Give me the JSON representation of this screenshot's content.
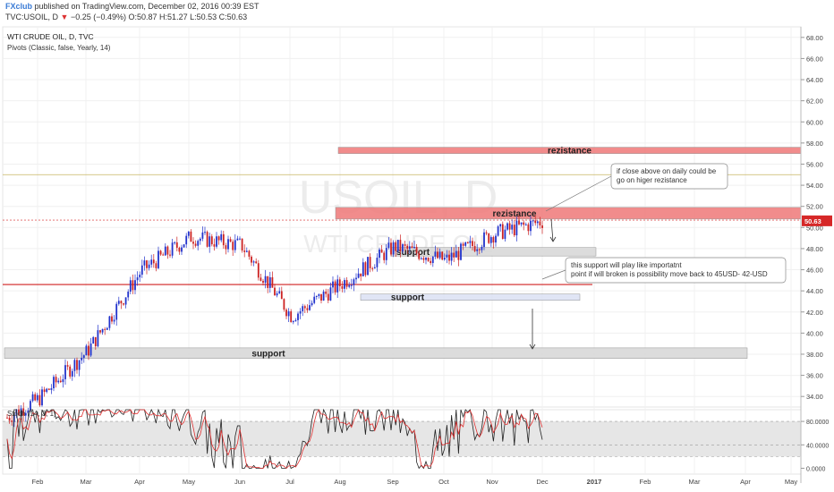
{
  "header": {
    "brand": "FXclub",
    "published": " published on TradingView.com, December 02, 2016 00:39 EST",
    "symbol": "TVC:USOIL, D",
    "change_arrow": "▼",
    "change": "−0.25 (−0.49%)",
    "ohlc_label": "O:50.87 H:51.27 L:50.53 C:50.63"
  },
  "chart_data": [
    {
      "type": "candlestick",
      "title": "WTI CRUDE OIL, D, TVC",
      "indicator_label": "Pivots (Classic, false, Yearly, 14)",
      "watermark": {
        "symbol": "USOIL, D",
        "name": "WTI CRUDE OIL"
      },
      "x_ticks": [
        "Feb",
        "Mar",
        "Apr",
        "May",
        "Jun",
        "Jul",
        "Aug",
        "Sep",
        "Oct",
        "Nov",
        "Dec",
        "2017",
        "Feb",
        "Mar",
        "Apr",
        "May"
      ],
      "y_ticks": [
        "34.00",
        "36.00",
        "38.00",
        "40.00",
        "42.00",
        "44.00",
        "46.00",
        "48.00",
        "50.00",
        "52.00",
        "54.00",
        "56.00",
        "58.00",
        "60.00",
        "62.00",
        "64.00",
        "66.00",
        "68.00"
      ],
      "ylim": [
        33,
        69
      ],
      "last_price": "50.63",
      "series_monthly_closes": [
        {
          "month": "Feb",
          "value": 33.8
        },
        {
          "month": "Mar",
          "value": 38.3
        },
        {
          "month": "Apr",
          "value": 45.9
        },
        {
          "month": "May",
          "value": 49.1
        },
        {
          "month": "Jun",
          "value": 48.3
        },
        {
          "month": "Jul",
          "value": 41.6
        },
        {
          "month": "Aug",
          "value": 44.7
        },
        {
          "month": "Sep",
          "value": 48.2
        },
        {
          "month": "Oct",
          "value": 46.9
        },
        {
          "month": "Nov",
          "value": 49.4
        },
        {
          "month": "Dec",
          "value": 50.63
        }
      ],
      "zones": [
        {
          "label": "rezistance",
          "from": 57.0,
          "to": 57.6,
          "color": "#f08080"
        },
        {
          "label": "rezistance",
          "from": 50.8,
          "to": 51.9,
          "color": "#f08080"
        },
        {
          "label": "support",
          "from": 47.3,
          "to": 48.1,
          "color": "#d9d9d9"
        },
        {
          "label": "support",
          "from": 43.1,
          "to": 43.7,
          "color": "#dde3f5"
        },
        {
          "label": "support",
          "from": 37.6,
          "to": 38.6,
          "color": "#d9d9d9"
        }
      ],
      "horizontal_lines": [
        {
          "value": 55.0,
          "color": "#c8b560"
        },
        {
          "value": 50.7,
          "color": "#e06060"
        },
        {
          "value": 44.6,
          "color": "#d02020"
        }
      ],
      "callouts": [
        {
          "text_lines": [
            "if close above on daily could be",
            "go on higer rezistance"
          ]
        },
        {
          "text_lines": [
            "this support will play like importatnt",
            "point if will broken is possibility move back to 45USD- 42-USD"
          ]
        }
      ]
    },
    {
      "type": "line",
      "title": "Stoch (14, 3, 1)",
      "y_ticks": [
        "0.0000",
        "40.0000",
        "80.0000"
      ],
      "ylim": [
        -10,
        100
      ],
      "band": [
        20,
        80
      ],
      "series": [
        {
          "color": "#222222"
        },
        {
          "color": "#e03030"
        }
      ]
    }
  ]
}
